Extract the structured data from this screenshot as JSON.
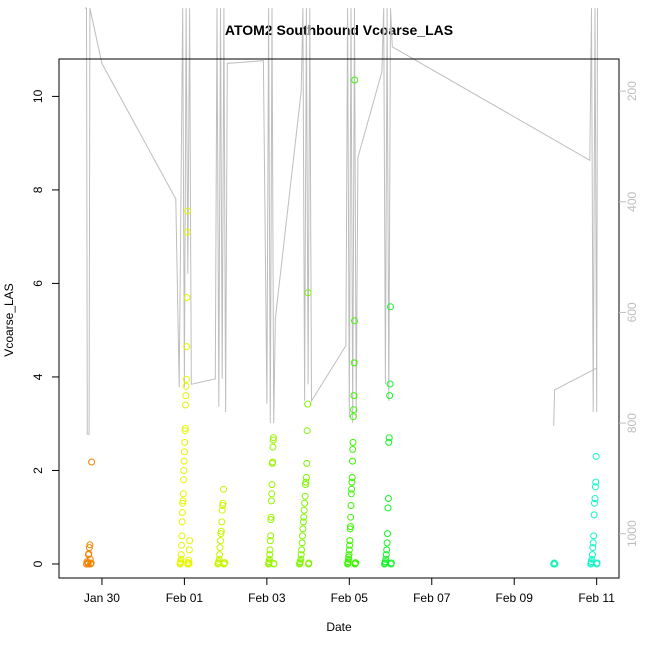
{
  "chart_data": {
    "type": "scatter",
    "title": "ATOM2 Southbound Vcoarse_LAS",
    "xlabel": "Date",
    "ylabel": "Vcoarse_LAS",
    "ylim": [
      -0.3,
      10.8
    ],
    "y_ticks": [
      0,
      2,
      4,
      6,
      8,
      10
    ],
    "x_axis": {
      "type": "date",
      "range": [
        "2017-01-28T23:00",
        "2017-02-11T13:00"
      ],
      "ticks": [
        {
          "date": "2017-01-30",
          "label": "Jan 30"
        },
        {
          "date": "2017-02-01",
          "label": "Feb 01"
        },
        {
          "date": "2017-02-03",
          "label": "Feb 03"
        },
        {
          "date": "2017-02-05",
          "label": "Feb 05"
        },
        {
          "date": "2017-02-07",
          "label": "Feb 07"
        },
        {
          "date": "2017-02-09",
          "label": "Feb 09"
        },
        {
          "date": "2017-02-11",
          "label": "Feb 11"
        }
      ]
    },
    "y2_axis": {
      "reversed": true,
      "range": [
        1080,
        142
      ],
      "ticks": [
        200,
        400,
        600,
        800,
        1000
      ],
      "color": "#bebebe"
    },
    "grid": false,
    "legend": "none",
    "marker": "open circle",
    "color_note": "points colored by date (orange to cyan)",
    "series": [
      {
        "color": "#f48200",
        "points": [
          [
            "2017-01-29T15:00",
            0.0
          ],
          [
            "2017-01-29T15:20",
            0.05
          ],
          [
            "2017-01-29T15:40",
            0.02
          ],
          [
            "2017-01-29T16:00",
            0.0
          ],
          [
            "2017-01-29T16:10",
            0.2
          ],
          [
            "2017-01-29T16:20",
            0.22
          ],
          [
            "2017-01-29T16:40",
            0.35
          ],
          [
            "2017-01-29T17:00",
            0.41
          ],
          [
            "2017-01-29T17:10",
            0.1
          ],
          [
            "2017-01-29T17:20",
            0.0
          ],
          [
            "2017-01-29T17:40",
            0.02
          ],
          [
            "2017-01-29T18:00",
            2.18
          ]
        ]
      },
      {
        "color": "#e6f500",
        "points": [
          [
            "2017-01-31T21:30",
            0.0
          ],
          [
            "2017-01-31T21:40",
            0.02
          ],
          [
            "2017-01-31T21:50",
            0.05
          ],
          [
            "2017-01-31T22:00",
            0.1
          ],
          [
            "2017-01-31T22:10",
            0.2
          ],
          [
            "2017-01-31T22:20",
            0.4
          ],
          [
            "2017-01-31T22:30",
            0.6
          ],
          [
            "2017-01-31T22:40",
            0.9
          ],
          [
            "2017-01-31T22:50",
            1.1
          ],
          [
            "2017-01-31T23:00",
            1.3
          ],
          [
            "2017-01-31T23:10",
            1.35
          ],
          [
            "2017-01-31T23:20",
            1.5
          ],
          [
            "2017-01-31T23:30",
            1.8
          ],
          [
            "2017-01-31T23:40",
            2.0
          ],
          [
            "2017-01-31T23:50",
            2.2
          ],
          [
            "2017-02-01T00:00",
            2.4
          ],
          [
            "2017-02-01T00:10",
            2.6
          ],
          [
            "2017-02-01T00:20",
            2.85
          ],
          [
            "2017-02-01T00:30",
            2.9
          ],
          [
            "2017-02-01T00:40",
            3.4
          ],
          [
            "2017-02-01T00:50",
            3.6
          ],
          [
            "2017-02-01T01:00",
            3.8
          ],
          [
            "2017-02-01T01:10",
            3.95
          ],
          [
            "2017-02-01T01:20",
            4.65
          ],
          [
            "2017-02-01T01:30",
            5.7
          ],
          [
            "2017-02-01T01:40",
            7.1
          ],
          [
            "2017-02-01T01:50",
            7.55
          ],
          [
            "2017-02-01T02:00",
            0.0
          ],
          [
            "2017-02-01T02:10",
            0.03
          ],
          [
            "2017-02-01T02:20",
            0.0
          ],
          [
            "2017-02-01T02:30",
            0.08
          ],
          [
            "2017-02-01T02:40",
            0.01
          ],
          [
            "2017-02-01T02:50",
            0.3
          ],
          [
            "2017-02-01T03:00",
            0.5
          ]
        ]
      },
      {
        "color": "#c8f500",
        "points": [
          [
            "2017-02-01T19:30",
            0.0
          ],
          [
            "2017-02-01T19:45",
            0.02
          ],
          [
            "2017-02-01T20:00",
            0.05
          ],
          [
            "2017-02-01T20:15",
            0.1
          ],
          [
            "2017-02-01T20:30",
            0.2
          ],
          [
            "2017-02-01T20:45",
            0.35
          ],
          [
            "2017-02-01T21:00",
            0.5
          ],
          [
            "2017-02-01T21:15",
            0.65
          ],
          [
            "2017-02-01T21:30",
            0.7
          ],
          [
            "2017-02-01T21:45",
            0.9
          ],
          [
            "2017-02-01T22:00",
            1.15
          ],
          [
            "2017-02-01T22:15",
            1.25
          ],
          [
            "2017-02-01T22:30",
            1.3
          ],
          [
            "2017-02-01T22:45",
            1.6
          ],
          [
            "2017-02-01T23:00",
            0.0
          ],
          [
            "2017-02-01T23:15",
            0.01
          ],
          [
            "2017-02-01T23:30",
            0.03
          ]
        ]
      },
      {
        "color": "#99f500",
        "points": [
          [
            "2017-02-03T01:00",
            0.0
          ],
          [
            "2017-02-03T01:10",
            0.02
          ],
          [
            "2017-02-03T01:20",
            0.05
          ],
          [
            "2017-02-03T01:30",
            0.1
          ],
          [
            "2017-02-03T01:40",
            0.2
          ],
          [
            "2017-02-03T01:50",
            0.3
          ],
          [
            "2017-02-03T02:00",
            0.5
          ],
          [
            "2017-02-03T02:10",
            0.6
          ],
          [
            "2017-02-03T02:20",
            0.95
          ],
          [
            "2017-02-03T02:30",
            1.0
          ],
          [
            "2017-02-03T02:40",
            1.35
          ],
          [
            "2017-02-03T02:50",
            1.5
          ],
          [
            "2017-02-03T03:00",
            1.7
          ],
          [
            "2017-02-03T03:10",
            2.15
          ],
          [
            "2017-02-03T03:20",
            2.18
          ],
          [
            "2017-02-03T03:30",
            2.5
          ],
          [
            "2017-02-03T03:40",
            2.65
          ],
          [
            "2017-02-03T03:50",
            2.7
          ],
          [
            "2017-02-03T04:00",
            0.0
          ],
          [
            "2017-02-03T04:10",
            0.01
          ]
        ]
      },
      {
        "color": "#80f500",
        "points": [
          [
            "2017-02-03T19:00",
            0.0
          ],
          [
            "2017-02-03T19:15",
            0.02
          ],
          [
            "2017-02-03T19:30",
            0.05
          ],
          [
            "2017-02-03T19:45",
            0.1
          ],
          [
            "2017-02-03T20:00",
            0.2
          ],
          [
            "2017-02-03T20:15",
            0.3
          ],
          [
            "2017-02-03T20:30",
            0.45
          ],
          [
            "2017-02-03T20:45",
            0.6
          ],
          [
            "2017-02-03T21:00",
            0.75
          ],
          [
            "2017-02-03T21:15",
            0.9
          ],
          [
            "2017-02-03T21:30",
            1.0
          ],
          [
            "2017-02-03T21:45",
            1.15
          ],
          [
            "2017-02-03T22:00",
            1.3
          ],
          [
            "2017-02-03T22:15",
            1.45
          ],
          [
            "2017-02-03T22:30",
            1.7
          ],
          [
            "2017-02-03T22:45",
            1.75
          ],
          [
            "2017-02-03T23:00",
            1.85
          ],
          [
            "2017-02-03T23:15",
            2.15
          ],
          [
            "2017-02-03T23:30",
            2.85
          ],
          [
            "2017-02-03T23:45",
            3.42
          ],
          [
            "2017-02-04T00:00",
            5.8
          ],
          [
            "2017-02-04T00:15",
            0.0
          ],
          [
            "2017-02-04T00:30",
            0.02
          ]
        ]
      },
      {
        "color": "#3cf500",
        "points": [
          [
            "2017-02-04T23:00",
            0.0
          ],
          [
            "2017-02-04T23:10",
            0.02
          ],
          [
            "2017-02-04T23:20",
            0.05
          ],
          [
            "2017-02-04T23:30",
            0.1
          ],
          [
            "2017-02-04T23:40",
            0.15
          ],
          [
            "2017-02-04T23:50",
            0.2
          ],
          [
            "2017-02-05T00:00",
            0.3
          ],
          [
            "2017-02-05T00:10",
            0.4
          ],
          [
            "2017-02-05T00:20",
            0.5
          ],
          [
            "2017-02-05T00:30",
            0.75
          ],
          [
            "2017-02-05T00:40",
            0.8
          ],
          [
            "2017-02-05T00:50",
            1.0
          ],
          [
            "2017-02-05T01:00",
            1.25
          ],
          [
            "2017-02-05T01:10",
            1.5
          ],
          [
            "2017-02-05T01:20",
            1.6
          ],
          [
            "2017-02-05T01:30",
            1.75
          ],
          [
            "2017-02-05T01:40",
            1.85
          ],
          [
            "2017-02-05T01:50",
            2.2
          ],
          [
            "2017-02-05T02:00",
            2.45
          ],
          [
            "2017-02-05T02:10",
            2.6
          ],
          [
            "2017-02-05T02:20",
            3.15
          ],
          [
            "2017-02-05T02:30",
            3.3
          ],
          [
            "2017-02-05T02:40",
            3.6
          ],
          [
            "2017-02-05T02:50",
            4.3
          ],
          [
            "2017-02-05T03:00",
            5.2
          ],
          [
            "2017-02-05T03:10",
            10.35
          ],
          [
            "2017-02-05T03:20",
            0.0
          ],
          [
            "2017-02-05T03:30",
            0.01
          ],
          [
            "2017-02-05T03:40",
            0.03
          ]
        ]
      },
      {
        "color": "#14f528",
        "points": [
          [
            "2017-02-05T20:30",
            0.0
          ],
          [
            "2017-02-05T20:45",
            0.02
          ],
          [
            "2017-02-05T21:00",
            0.05
          ],
          [
            "2017-02-05T21:15",
            0.1
          ],
          [
            "2017-02-05T21:30",
            0.2
          ],
          [
            "2017-02-05T21:45",
            0.3
          ],
          [
            "2017-02-05T22:00",
            0.45
          ],
          [
            "2017-02-05T22:15",
            0.65
          ],
          [
            "2017-02-05T22:30",
            1.2
          ],
          [
            "2017-02-05T22:45",
            1.4
          ],
          [
            "2017-02-05T23:00",
            2.6
          ],
          [
            "2017-02-05T23:15",
            2.7
          ],
          [
            "2017-02-05T23:30",
            3.6
          ],
          [
            "2017-02-05T23:45",
            3.85
          ],
          [
            "2017-02-06T00:00",
            5.5
          ],
          [
            "2017-02-06T00:15",
            0.0
          ],
          [
            "2017-02-06T00:30",
            0.02
          ]
        ]
      },
      {
        "color": "#14f5b4",
        "points": [
          [
            "2017-02-09T23:00",
            0.0
          ],
          [
            "2017-02-09T23:20",
            0.02
          ],
          [
            "2017-02-09T23:40",
            0.0
          ]
        ]
      },
      {
        "color": "#14f5c8",
        "points": [
          [
            "2017-02-10T20:30",
            0.0
          ],
          [
            "2017-02-10T20:45",
            0.02
          ],
          [
            "2017-02-10T21:00",
            0.05
          ],
          [
            "2017-02-10T21:15",
            0.1
          ],
          [
            "2017-02-10T21:30",
            0.2
          ],
          [
            "2017-02-10T21:45",
            0.35
          ],
          [
            "2017-02-10T22:00",
            0.45
          ],
          [
            "2017-02-10T22:15",
            0.6
          ],
          [
            "2017-02-10T22:30",
            1.05
          ],
          [
            "2017-02-10T22:45",
            1.3
          ],
          [
            "2017-02-10T23:00",
            1.4
          ],
          [
            "2017-02-10T23:15",
            1.65
          ],
          [
            "2017-02-10T23:30",
            1.75
          ],
          [
            "2017-02-10T23:45",
            2.3
          ],
          [
            "2017-02-11T00:00",
            0.0
          ],
          [
            "2017-02-11T00:15",
            0.02
          ]
        ]
      }
    ],
    "altitude_trace": {
      "color": "#bebebe",
      "points": [
        [
          "2017-01-29T14:00",
          50
        ],
        [
          "2017-01-29T15:00",
          50
        ],
        [
          "2017-01-29T15:30",
          820
        ],
        [
          "2017-01-29T16:30",
          820
        ],
        [
          "2017-01-29T17:00",
          50
        ],
        [
          "2017-01-30T00:00",
          150
        ],
        [
          "2017-01-31T19:00",
          395
        ],
        [
          "2017-01-31T21:00",
          735
        ],
        [
          "2017-01-31T23:00",
          50
        ],
        [
          "2017-02-01T00:00",
          735
        ],
        [
          "2017-02-01T01:00",
          50
        ],
        [
          "2017-02-01T02:00",
          530
        ],
        [
          "2017-02-01T03:00",
          50
        ],
        [
          "2017-02-01T04:00",
          730
        ],
        [
          "2017-02-01T18:00",
          720
        ],
        [
          "2017-02-01T19:00",
          50
        ],
        [
          "2017-02-01T20:00",
          770
        ],
        [
          "2017-02-01T21:00",
          50
        ],
        [
          "2017-02-01T22:00",
          720
        ],
        [
          "2017-02-01T23:00",
          50
        ],
        [
          "2017-02-02T00:00",
          780
        ],
        [
          "2017-02-02T01:00",
          150
        ],
        [
          "2017-02-02T22:00",
          145
        ],
        [
          "2017-02-03T00:00",
          765
        ],
        [
          "2017-02-03T01:00",
          50
        ],
        [
          "2017-02-03T02:00",
          800
        ],
        [
          "2017-02-03T03:00",
          50
        ],
        [
          "2017-02-03T04:00",
          800
        ],
        [
          "2017-02-03T05:00",
          610
        ],
        [
          "2017-02-03T20:00",
          200
        ],
        [
          "2017-02-03T21:00",
          50
        ],
        [
          "2017-02-03T22:00",
          760
        ],
        [
          "2017-02-03T23:00",
          50
        ],
        [
          "2017-02-04T00:00",
          730
        ],
        [
          "2017-02-04T01:00",
          50
        ],
        [
          "2017-02-04T02:00",
          760
        ],
        [
          "2017-02-04T22:00",
          660
        ],
        [
          "2017-02-04T23:00",
          50
        ],
        [
          "2017-02-05T00:00",
          790
        ],
        [
          "2017-02-05T01:00",
          50
        ],
        [
          "2017-02-05T02:00",
          800
        ],
        [
          "2017-02-05T03:00",
          50
        ],
        [
          "2017-02-05T04:00",
          790
        ],
        [
          "2017-02-05T05:00",
          320
        ],
        [
          "2017-02-05T19:00",
          165
        ],
        [
          "2017-02-05T20:00",
          50
        ],
        [
          "2017-02-05T21:00",
          730
        ],
        [
          "2017-02-05T22:00",
          50
        ],
        [
          "2017-02-05T23:00",
          760
        ],
        [
          "2017-02-06T00:00",
          50
        ],
        [
          "2017-02-06T01:00",
          120
        ],
        [
          "2017-02-10T20:00",
          325
        ],
        [
          "2017-02-10T21:00",
          50
        ],
        [
          "2017-02-10T22:00",
          780
        ],
        [
          "2017-02-10T23:00",
          50
        ],
        [
          "2017-02-11T00:00",
          780
        ],
        [
          "2017-02-11T00:30",
          50
        ]
      ]
    },
    "altitude_trace_2": {
      "color": "#bebebe",
      "points": [
        [
          "2017-02-09T23:00",
          805
        ],
        [
          "2017-02-09T23:30",
          740
        ],
        [
          "2017-02-11T00:30",
          700
        ]
      ]
    }
  }
}
